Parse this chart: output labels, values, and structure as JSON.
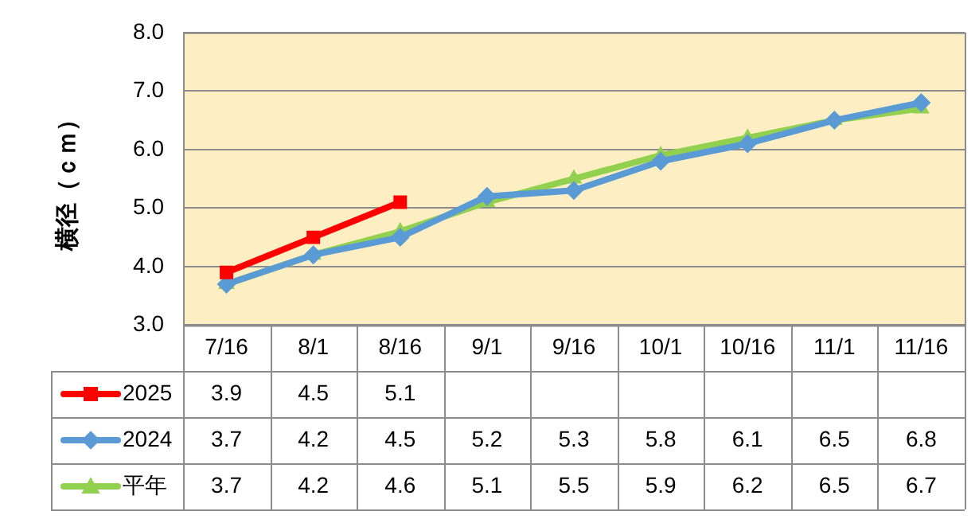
{
  "chart_data": {
    "type": "line",
    "ylabel": "横径（ｃｍ）",
    "categories": [
      "7/16",
      "8/1",
      "8/16",
      "9/1",
      "9/16",
      "10/1",
      "10/16",
      "11/1",
      "11/16"
    ],
    "series": [
      {
        "name": "2025",
        "color": "#ff0000",
        "marker": "square",
        "values": [
          3.9,
          4.5,
          5.1,
          null,
          null,
          null,
          null,
          null,
          null
        ]
      },
      {
        "name": "2024",
        "color": "#5b9bd5",
        "marker": "diamond",
        "values": [
          3.7,
          4.2,
          4.5,
          5.2,
          5.3,
          5.8,
          6.1,
          6.5,
          6.8
        ]
      },
      {
        "name": "平年",
        "color": "#92d050",
        "marker": "triangle",
        "values": [
          3.7,
          4.2,
          4.6,
          5.1,
          5.5,
          5.9,
          6.2,
          6.5,
          6.7
        ]
      }
    ],
    "ylim": [
      3,
      8
    ],
    "yticks": [
      {
        "value": 3,
        "label": "3.0"
      },
      {
        "value": 4,
        "label": "4.0"
      },
      {
        "value": 5,
        "label": "5.0"
      },
      {
        "value": 6,
        "label": "6.0"
      },
      {
        "value": 7,
        "label": "7.0"
      },
      {
        "value": 8,
        "label": "8.0"
      }
    ],
    "grid": "y",
    "legend": "bottom left",
    "data_labels": true,
    "line_style": "solid"
  }
}
